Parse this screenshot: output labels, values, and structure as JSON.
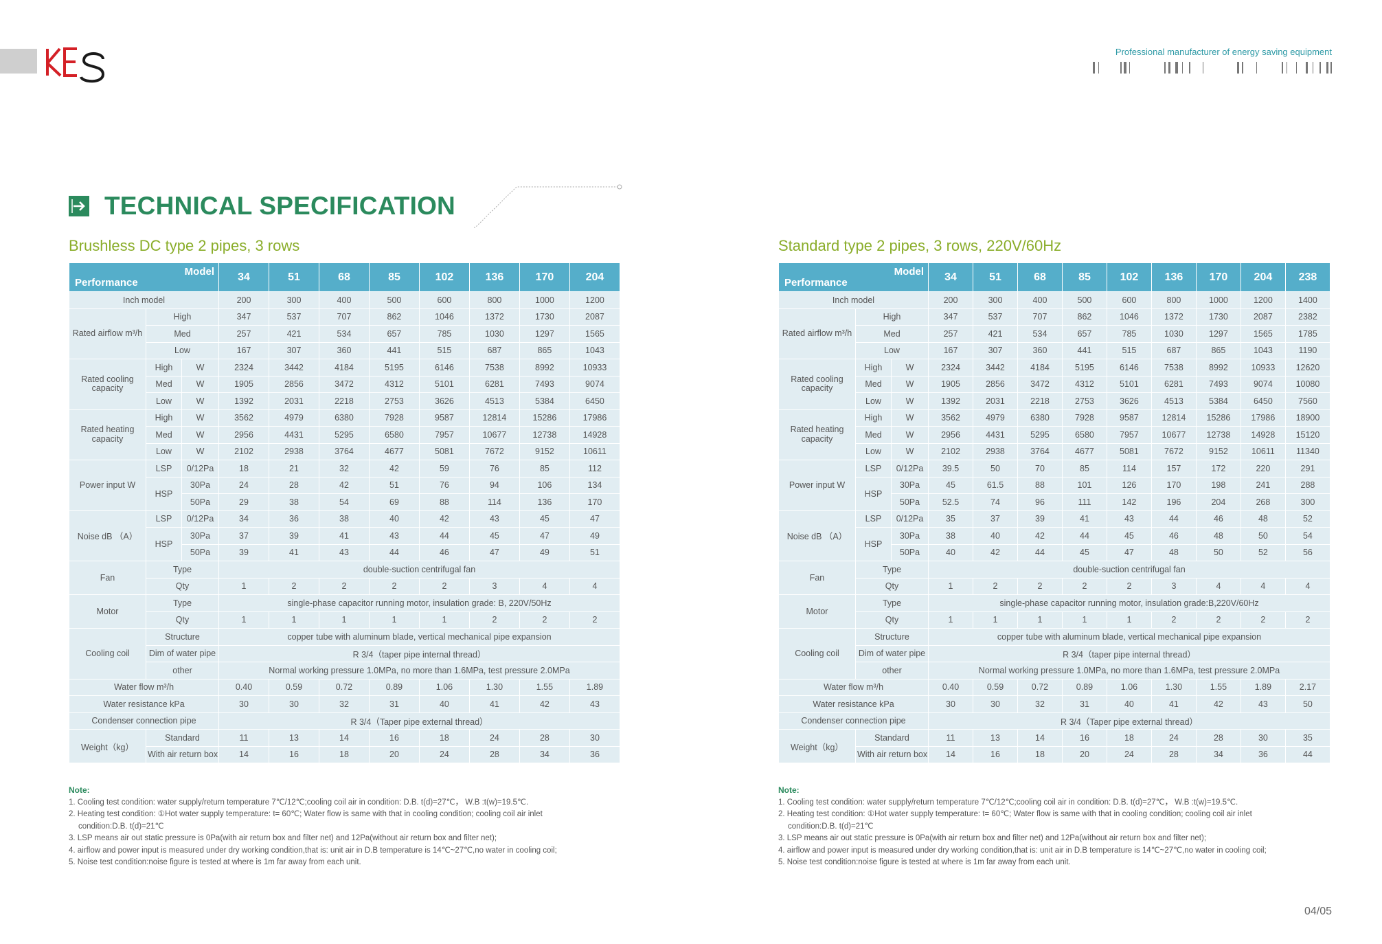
{
  "header": {
    "logo_text": "KES",
    "tagline": "Professional manufacturer of energy saving equipment"
  },
  "page_title": "TECHNICAL SPECIFICATION",
  "page_number": "04/05",
  "colors": {
    "primary_green": "#2b8a5d",
    "subtitle_green": "#8aad2a",
    "header_blue": "#55aeca",
    "cell_bg": "#e1edf2",
    "logo_red": "#d42026"
  },
  "left_section": {
    "title": "Brushless DC type 2 pipes, 3 rows",
    "corner_model": "Model",
    "corner_perf": "Performance",
    "models": [
      "34",
      "51",
      "68",
      "85",
      "102",
      "136",
      "170",
      "204"
    ],
    "inch_label": "Inch model",
    "inch": [
      "200",
      "300",
      "400",
      "500",
      "600",
      "800",
      "1000",
      "1200"
    ],
    "airflow_label": "Rated airflow m³/h",
    "airflow": [
      {
        "level": "High",
        "values": [
          "347",
          "537",
          "707",
          "862",
          "1046",
          "1372",
          "1730",
          "2087"
        ]
      },
      {
        "level": "Med",
        "values": [
          "257",
          "421",
          "534",
          "657",
          "785",
          "1030",
          "1297",
          "1565"
        ]
      },
      {
        "level": "Low",
        "values": [
          "167",
          "307",
          "360",
          "441",
          "515",
          "687",
          "865",
          "1043"
        ]
      }
    ],
    "cooling_label": "Rated cooling capacity",
    "cooling": [
      {
        "level": "High",
        "unit": "W",
        "values": [
          "2324",
          "3442",
          "4184",
          "5195",
          "6146",
          "7538",
          "8992",
          "10933"
        ]
      },
      {
        "level": "Med",
        "unit": "W",
        "values": [
          "1905",
          "2856",
          "3472",
          "4312",
          "5101",
          "6281",
          "7493",
          "9074"
        ]
      },
      {
        "level": "Low",
        "unit": "W",
        "values": [
          "1392",
          "2031",
          "2218",
          "2753",
          "3626",
          "4513",
          "5384",
          "6450"
        ]
      }
    ],
    "heating_label": "Rated heating capacity",
    "heating": [
      {
        "level": "High",
        "unit": "W",
        "values": [
          "3562",
          "4979",
          "6380",
          "7928",
          "9587",
          "12814",
          "15286",
          "17986"
        ]
      },
      {
        "level": "Med",
        "unit": "W",
        "values": [
          "2956",
          "4431",
          "5295",
          "6580",
          "7957",
          "10677",
          "12738",
          "14928"
        ]
      },
      {
        "level": "Low",
        "unit": "W",
        "values": [
          "2102",
          "2938",
          "3764",
          "4677",
          "5081",
          "7672",
          "9152",
          "10611"
        ]
      }
    ],
    "power_label": "Power input W",
    "power": {
      "lsp_label": "LSP",
      "lsp_pa": "0/12Pa",
      "lsp": [
        "18",
        "21",
        "32",
        "42",
        "59",
        "76",
        "85",
        "112"
      ],
      "hsp_label": "HSP",
      "hsp30_pa": "30Pa",
      "hsp30": [
        "24",
        "28",
        "42",
        "51",
        "76",
        "94",
        "106",
        "134"
      ],
      "hsp50_pa": "50Pa",
      "hsp50": [
        "29",
        "38",
        "54",
        "69",
        "88",
        "114",
        "136",
        "170"
      ]
    },
    "noise_label": "Noise dB （A）",
    "noise": {
      "lsp_label": "LSP",
      "lsp_pa": "0/12Pa",
      "lsp": [
        "34",
        "36",
        "38",
        "40",
        "42",
        "43",
        "45",
        "47"
      ],
      "hsp_label": "HSP",
      "hsp30_pa": "30Pa",
      "hsp30": [
        "37",
        "39",
        "41",
        "43",
        "44",
        "45",
        "47",
        "49"
      ],
      "hsp50_pa": "50Pa",
      "hsp50": [
        "39",
        "41",
        "43",
        "44",
        "46",
        "47",
        "49",
        "51"
      ]
    },
    "fan_label": "Fan",
    "fan_type_label": "Type",
    "fan_type": "double-suction centrifugal fan",
    "fan_qty_label": "Qty",
    "fan_qty": [
      "1",
      "2",
      "2",
      "2",
      "2",
      "3",
      "4",
      "4"
    ],
    "motor_label": "Motor",
    "motor_type_label": "Type",
    "motor_type": "single-phase capacitor running motor, insulation grade: B, 220V/50Hz",
    "motor_qty_label": "Qty",
    "motor_qty": [
      "1",
      "1",
      "1",
      "1",
      "1",
      "2",
      "2",
      "2"
    ],
    "coil_label": "Cooling coil",
    "coil_structure_label": "Structure",
    "coil_structure": "copper tube with aluminum blade, vertical mechanical pipe expansion",
    "coil_dim_label": "Dim of water pipe",
    "coil_dim": "R 3/4（taper pipe internal thread）",
    "coil_other_label": "other",
    "coil_other": "Normal working pressure 1.0MPa, no more than 1.6MPa, test pressure 2.0MPa",
    "waterflow_label": "Water flow m³/h",
    "waterflow": [
      "0.40",
      "0.59",
      "0.72",
      "0.89",
      "1.06",
      "1.30",
      "1.55",
      "1.89"
    ],
    "resistance_label": "Water resistance kPa",
    "resistance": [
      "30",
      "30",
      "32",
      "31",
      "40",
      "41",
      "42",
      "43"
    ],
    "condenser_label": "Condenser connection pipe",
    "condenser": "R 3/4（Taper pipe external thread）",
    "weight_label": "Weight（kg）",
    "weight_std_label": "Standard",
    "weight_std": [
      "11",
      "13",
      "14",
      "16",
      "18",
      "24",
      "28",
      "30"
    ],
    "weight_box_label": "With air return box",
    "weight_box": [
      "14",
      "16",
      "18",
      "20",
      "24",
      "28",
      "34",
      "36"
    ],
    "notes": {
      "title": "Note:",
      "n1": "1. Cooling test condition: water supply/return temperature 7℃/12℃;cooling coil air in condition: D.B. t(d)=27℃， W.B :t(w)=19.5℃.",
      "n2": "2. Heating test condition: ①Hot water supply temperature: t= 60℃; Water flow is same with that in cooling condition; cooling coil air inlet",
      "n2b": "condition:D.B. t(d)=21℃",
      "n3": "3. LSP means air out static pressure is 0Pa(with air return box and filter net) and 12Pa(without air return box and filter net);",
      "n4": "4. airflow and power input is measured under dry working condition,that is: unit air in D.B temperature is 14℃~27℃,no water in cooling coil;",
      "n5": "5. Noise test condition:noise figure is tested at where is 1m far away from each unit."
    }
  },
  "right_section": {
    "title": "Standard type 2 pipes, 3 rows, 220V/60Hz",
    "corner_model": "Model",
    "corner_perf": "Performance",
    "models": [
      "34",
      "51",
      "68",
      "85",
      "102",
      "136",
      "170",
      "204",
      "238"
    ],
    "inch_label": "Inch model",
    "inch": [
      "200",
      "300",
      "400",
      "500",
      "600",
      "800",
      "1000",
      "1200",
      "1400"
    ],
    "airflow_label": "Rated airflow m³/h",
    "airflow": [
      {
        "level": "High",
        "values": [
          "347",
          "537",
          "707",
          "862",
          "1046",
          "1372",
          "1730",
          "2087",
          "2382"
        ]
      },
      {
        "level": "Med",
        "values": [
          "257",
          "421",
          "534",
          "657",
          "785",
          "1030",
          "1297",
          "1565",
          "1785"
        ]
      },
      {
        "level": "Low",
        "values": [
          "167",
          "307",
          "360",
          "441",
          "515",
          "687",
          "865",
          "1043",
          "1190"
        ]
      }
    ],
    "cooling_label": "Rated cooling capacity",
    "cooling": [
      {
        "level": "High",
        "unit": "W",
        "values": [
          "2324",
          "3442",
          "4184",
          "5195",
          "6146",
          "7538",
          "8992",
          "10933",
          "12620"
        ]
      },
      {
        "level": "Med",
        "unit": "W",
        "values": [
          "1905",
          "2856",
          "3472",
          "4312",
          "5101",
          "6281",
          "7493",
          "9074",
          "10080"
        ]
      },
      {
        "level": "Low",
        "unit": "W",
        "values": [
          "1392",
          "2031",
          "2218",
          "2753",
          "3626",
          "4513",
          "5384",
          "6450",
          "7560"
        ]
      }
    ],
    "heating_label": "Rated heating capacity",
    "heating": [
      {
        "level": "High",
        "unit": "W",
        "values": [
          "3562",
          "4979",
          "6380",
          "7928",
          "9587",
          "12814",
          "15286",
          "17986",
          "18900"
        ]
      },
      {
        "level": "Med",
        "unit": "W",
        "values": [
          "2956",
          "4431",
          "5295",
          "6580",
          "7957",
          "10677",
          "12738",
          "14928",
          "15120"
        ]
      },
      {
        "level": "Low",
        "unit": "W",
        "values": [
          "2102",
          "2938",
          "3764",
          "4677",
          "5081",
          "7672",
          "9152",
          "10611",
          "11340"
        ]
      }
    ],
    "power_label": "Power input W",
    "power": {
      "lsp_label": "LSP",
      "lsp_pa": "0/12Pa",
      "lsp": [
        "39.5",
        "50",
        "70",
        "85",
        "114",
        "157",
        "172",
        "220",
        "291"
      ],
      "hsp_label": "HSP",
      "hsp30_pa": "30Pa",
      "hsp30": [
        "45",
        "61.5",
        "88",
        "101",
        "126",
        "170",
        "198",
        "241",
        "288"
      ],
      "hsp50_pa": "50Pa",
      "hsp50": [
        "52.5",
        "74",
        "96",
        "111",
        "142",
        "196",
        "204",
        "268",
        "300"
      ]
    },
    "noise_label": "Noise dB （A）",
    "noise": {
      "lsp_label": "LSP",
      "lsp_pa": "0/12Pa",
      "lsp": [
        "35",
        "37",
        "39",
        "41",
        "43",
        "44",
        "46",
        "48",
        "52"
      ],
      "hsp_label": "HSP",
      "hsp30_pa": "30Pa",
      "hsp30": [
        "38",
        "40",
        "42",
        "44",
        "45",
        "46",
        "48",
        "50",
        "54"
      ],
      "hsp50_pa": "50Pa",
      "hsp50": [
        "40",
        "42",
        "44",
        "45",
        "47",
        "48",
        "50",
        "52",
        "56"
      ]
    },
    "fan_label": "Fan",
    "fan_type_label": "Type",
    "fan_type": "double-suction centrifugal fan",
    "fan_qty_label": "Qty",
    "fan_qty": [
      "1",
      "2",
      "2",
      "2",
      "2",
      "3",
      "4",
      "4",
      "4"
    ],
    "motor_label": "Motor",
    "motor_type_label": "Type",
    "motor_type": "single-phase capacitor running motor, insulation grade:B,220V/60Hz",
    "motor_qty_label": "Qty",
    "motor_qty": [
      "1",
      "1",
      "1",
      "1",
      "1",
      "2",
      "2",
      "2",
      "2"
    ],
    "coil_label": "Cooling coil",
    "coil_structure_label": "Structure",
    "coil_structure": "copper tube with aluminum blade, vertical mechanical pipe expansion",
    "coil_dim_label": "Dim of water pipe",
    "coil_dim": "R 3/4（taper pipe internal thread）",
    "coil_other_label": "other",
    "coil_other": "Normal working pressure 1.0MPa, no more than 1.6MPa, test pressure 2.0MPa",
    "waterflow_label": "Water flow m³/h",
    "waterflow": [
      "0.40",
      "0.59",
      "0.72",
      "0.89",
      "1.06",
      "1.30",
      "1.55",
      "1.89",
      "2.17"
    ],
    "resistance_label": "Water resistance kPa",
    "resistance": [
      "30",
      "30",
      "32",
      "31",
      "40",
      "41",
      "42",
      "43",
      "50"
    ],
    "condenser_label": "Condenser connection pipe",
    "condenser": "R 3/4（Taper pipe external thread）",
    "weight_label": "Weight（kg）",
    "weight_std_label": "Standard",
    "weight_std": [
      "11",
      "13",
      "14",
      "16",
      "18",
      "24",
      "28",
      "30",
      "35"
    ],
    "weight_box_label": "With air return box",
    "weight_box": [
      "14",
      "16",
      "18",
      "20",
      "24",
      "28",
      "34",
      "36",
      "44"
    ],
    "notes": {
      "title": "Note:",
      "n1": "1. Cooling test condition: water supply/return temperature 7℃/12℃;cooling coil air in condition: D.B. t(d)=27℃， W.B :t(w)=19.5℃.",
      "n2": "2. Heating test condition: ①Hot water supply temperature: t= 60℃; Water flow is same with that in cooling condition; cooling coil air inlet",
      "n2b": "condition:D.B. t(d)=21℃",
      "n3": "3. LSP means air out static pressure is 0Pa(with air return box and filter net) and 12Pa(without air return box and filter net);",
      "n4": "4. airflow and power input is measured under dry working condition,that is: unit air in D.B temperature is 14℃~27℃,no water in cooling coil;",
      "n5": "5. Noise test condition:noise figure is tested at where is 1m far away from each unit."
    }
  }
}
